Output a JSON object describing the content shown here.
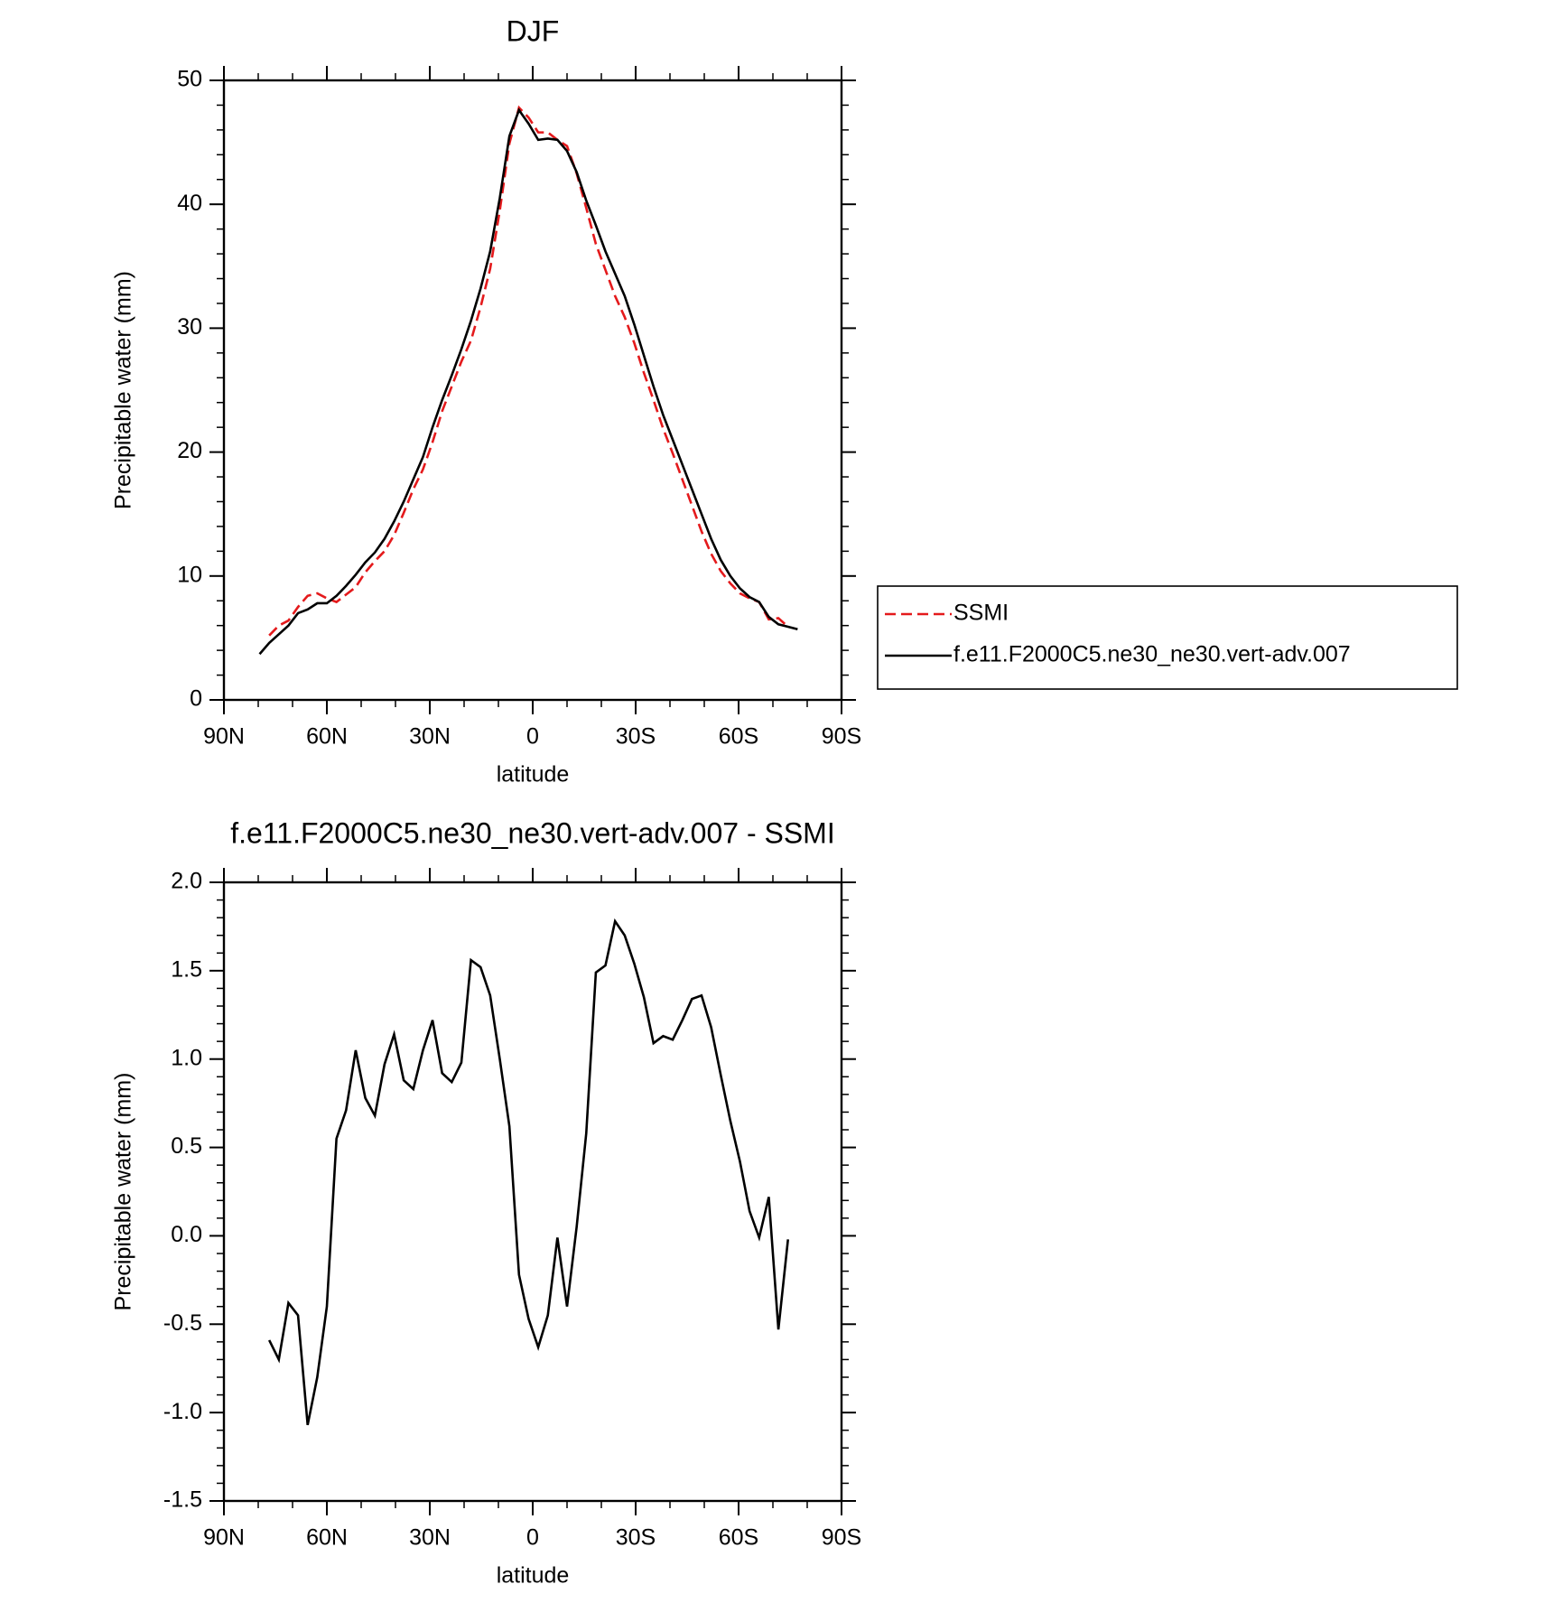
{
  "chart_data": [
    {
      "type": "line",
      "title": "DJF",
      "xlabel": "latitude",
      "ylabel": "Precipitable water (mm)",
      "x": [
        79.6,
        76.8,
        74.0,
        71.2,
        68.4,
        65.6,
        62.8,
        60.0,
        57.2,
        54.4,
        51.6,
        48.8,
        46.0,
        43.2,
        40.4,
        37.6,
        34.8,
        32.0,
        29.2,
        26.4,
        23.6,
        20.8,
        18.0,
        15.2,
        12.4,
        9.6,
        6.8,
        4.0,
        1.2,
        -1.6,
        -4.4,
        -7.2,
        -10.0,
        -12.8,
        -15.6,
        -18.4,
        -21.2,
        -24.0,
        -26.8,
        -29.6,
        -32.4,
        -35.2,
        -38.0,
        -40.8,
        -43.6,
        -46.4,
        -49.2,
        -52.0,
        -54.8,
        -57.6,
        -60.4,
        -63.2,
        -66.0,
        -68.8,
        -71.6,
        -74.4,
        -77.2
      ],
      "series": [
        {
          "name": "SSMI",
          "color": "#e41a1c",
          "linestyle": "dashed",
          "values": [
            null,
            5.2,
            6.0,
            6.4,
            7.5,
            8.4,
            8.6,
            8.2,
            7.9,
            8.5,
            9.1,
            10.3,
            11.2,
            12.0,
            13.3,
            15.1,
            17.0,
            18.6,
            20.8,
            23.3,
            25.3,
            27.3,
            29.0,
            31.7,
            34.8,
            39.5,
            44.9,
            47.8,
            47.0,
            45.8,
            45.8,
            45.2,
            44.7,
            42.5,
            39.7,
            36.8,
            34.7,
            32.6,
            30.9,
            28.8,
            26.4,
            24.2,
            21.9,
            19.9,
            17.8,
            15.7,
            13.6,
            11.8,
            10.4,
            9.4,
            8.6,
            8.2,
            7.9,
            6.5,
            6.6,
            5.9,
            null
          ]
        },
        {
          "name": "f.e11.F2000C5.ne30_ne30.vert-adv.007",
          "color": "#000000",
          "linestyle": "solid",
          "values": [
            3.7,
            4.6,
            5.3,
            6.0,
            7.0,
            7.3,
            7.8,
            7.8,
            8.4,
            9.2,
            10.1,
            11.1,
            11.9,
            13.0,
            14.4,
            16.0,
            17.8,
            19.6,
            22.0,
            24.2,
            26.2,
            28.3,
            30.6,
            33.2,
            36.2,
            40.5,
            45.5,
            47.6,
            46.5,
            45.2,
            45.3,
            45.2,
            44.3,
            42.6,
            40.3,
            38.3,
            36.2,
            34.4,
            32.6,
            30.3,
            27.8,
            25.3,
            23.0,
            21.0,
            19.0,
            17.0,
            15.0,
            13.0,
            11.3,
            10.0,
            9.0,
            8.3,
            7.9,
            6.7,
            6.1,
            5.9,
            5.7
          ]
        }
      ],
      "xlim": [
        90,
        -90
      ],
      "xticks": [
        {
          "value": 90,
          "label": "90N"
        },
        {
          "value": 60,
          "label": "60N"
        },
        {
          "value": 30,
          "label": "30N"
        },
        0,
        {
          "value": -30,
          "label": "30S"
        },
        {
          "value": -60,
          "label": "60S"
        },
        {
          "value": -90,
          "label": "90S"
        }
      ],
      "ylim": [
        0,
        50
      ],
      "yticks": [
        0,
        10,
        20,
        30,
        40,
        50
      ],
      "legend": "outside-right"
    },
    {
      "type": "line",
      "title": "f.e11.F2000C5.ne30_ne30.vert-adv.007 - SSMI",
      "xlabel": "latitude",
      "ylabel": "Precipitable water (mm)",
      "x": [
        76.8,
        74.0,
        71.2,
        68.4,
        65.6,
        62.8,
        60.0,
        57.2,
        54.4,
        51.6,
        48.8,
        46.0,
        43.2,
        40.4,
        37.6,
        34.8,
        32.0,
        29.2,
        26.4,
        23.6,
        20.8,
        18.0,
        15.2,
        12.4,
        9.6,
        6.8,
        4.0,
        1.2,
        -1.6,
        -4.4,
        -7.2,
        -10.0,
        -12.8,
        -15.6,
        -18.4,
        -21.2,
        -24.0,
        -26.8,
        -29.6,
        -32.4,
        -35.2,
        -38.0,
        -40.8,
        -43.6,
        -46.4,
        -49.2,
        -52.0,
        -54.8,
        -57.6,
        -60.4,
        -63.2,
        -66.0,
        -68.8,
        -71.6,
        -74.4
      ],
      "series": [
        {
          "color": "#000000",
          "linestyle": "solid",
          "values": [
            -0.59,
            -0.7,
            -0.38,
            -0.45,
            -1.07,
            -0.8,
            -0.4,
            0.55,
            0.71,
            1.05,
            0.78,
            0.68,
            0.97,
            1.14,
            0.88,
            0.83,
            1.05,
            1.22,
            0.92,
            0.87,
            0.98,
            1.56,
            1.52,
            1.36,
            1.0,
            0.62,
            -0.22,
            -0.47,
            -0.63,
            -0.45,
            -0.01,
            -0.4,
            0.05,
            0.58,
            1.49,
            1.53,
            1.78,
            1.7,
            1.54,
            1.35,
            1.09,
            1.13,
            1.11,
            1.22,
            1.34,
            1.36,
            1.18,
            0.91,
            0.65,
            0.42,
            0.14,
            -0.01,
            0.22,
            -0.53,
            -0.02
          ]
        }
      ],
      "xlim": [
        90,
        -90
      ],
      "xticks": [
        {
          "value": 90,
          "label": "90N"
        },
        {
          "value": 60,
          "label": "60N"
        },
        {
          "value": 30,
          "label": "30N"
        },
        0,
        {
          "value": -30,
          "label": "30S"
        },
        {
          "value": -60,
          "label": "60S"
        },
        {
          "value": -90,
          "label": "90S"
        }
      ],
      "ylim": [
        -1.5,
        2.0
      ],
      "yticks": [
        -1.5,
        {
          "value": -1.0,
          "label": "-1.0"
        },
        -0.5,
        {
          "value": 0.0,
          "label": "0.0"
        },
        0.5,
        {
          "value": 1.0,
          "label": "1.0"
        },
        1.5,
        {
          "value": 2.0,
          "label": "2.0"
        }
      ]
    }
  ]
}
